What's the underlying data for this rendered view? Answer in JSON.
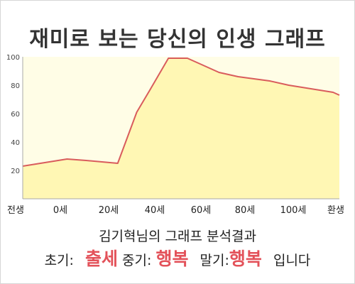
{
  "title": "재미로 보는 당신의 인생 그래프",
  "subtitle": "김기혁님의 그래프 분석결과",
  "result": {
    "early_label": "초기:",
    "early_value": "출세",
    "mid_label": "중기:",
    "mid_value": "행복",
    "late_label": "말기:",
    "late_value": "행복",
    "suffix": "입니다"
  },
  "colors": {
    "line": "#d95c5c",
    "fill": "#fff7b4",
    "plot_bg": "#fffde6",
    "highlight": "#e3525a"
  },
  "chart_data": {
    "type": "area",
    "title": "재미로 보는 당신의 인생 그래프",
    "xlabel": "",
    "ylabel": "",
    "categories": [
      "전생",
      "0세",
      "20세",
      "40세",
      "60세",
      "80세",
      "100세",
      "환생"
    ],
    "y_ticks": [
      "20",
      "40",
      "60",
      "80",
      "100"
    ],
    "ylim": [
      0,
      100
    ],
    "grid": false,
    "x": [
      0,
      0.7,
      1.0,
      1.5,
      1.8,
      2.0,
      2.3,
      2.6,
      2.8,
      3.1,
      3.4,
      3.9,
      4.2,
      4.9,
      5.0
    ],
    "values": [
      23,
      28,
      27,
      25,
      61,
      76,
      99,
      99,
      95,
      89,
      86,
      83,
      80,
      75,
      73
    ]
  }
}
